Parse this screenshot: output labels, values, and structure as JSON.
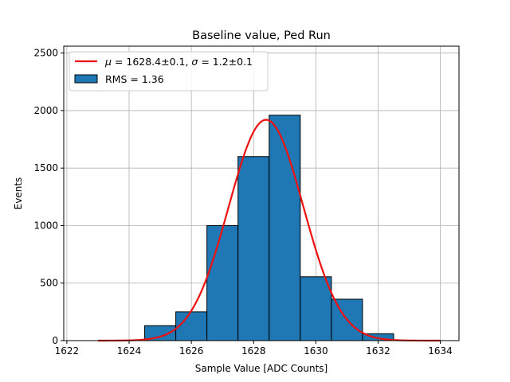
{
  "chart_data": {
    "type": "bar",
    "title": "Baseline value, Ped Run",
    "xlabel": "Sample Value [ADC Counts]",
    "ylabel": "Events",
    "xlim": [
      1621.9,
      1634.6
    ],
    "ylim": [
      0,
      2560
    ],
    "x_ticks": [
      1622,
      1624,
      1626,
      1628,
      1630,
      1632,
      1634
    ],
    "y_ticks": [
      0,
      500,
      1000,
      1500,
      2000,
      2500
    ],
    "grid": true,
    "legend_position": "top-left",
    "histogram": {
      "name": "RMS = 1.36",
      "color": "#1f77b4",
      "edgecolor": "#000000",
      "bins": [
        {
          "left": 1624.5,
          "right": 1625.5,
          "value": 130
        },
        {
          "left": 1625.5,
          "right": 1626.5,
          "value": 250
        },
        {
          "left": 1626.5,
          "right": 1627.5,
          "value": 1000
        },
        {
          "left": 1627.5,
          "right": 1628.5,
          "value": 1600
        },
        {
          "left": 1628.5,
          "right": 1629.5,
          "value": 1960
        },
        {
          "left": 1629.5,
          "right": 1630.5,
          "value": 555
        },
        {
          "left": 1630.5,
          "right": 1631.5,
          "value": 360
        },
        {
          "left": 1631.5,
          "right": 1632.5,
          "value": 60
        }
      ]
    },
    "fit": {
      "name": "μ = 1628.4±0.1, σ = 1.2±0.1",
      "legend_mu": "μ",
      "legend_mu_text": " = 1628.4±0.1, ",
      "legend_sigma": "σ",
      "legend_sigma_text": " = 1.2±0.1",
      "color": "#ee1111",
      "mean": 1628.4,
      "sigma": 1.2,
      "amplitude": 1920,
      "x_range": [
        1623.0,
        1634.0
      ]
    }
  }
}
